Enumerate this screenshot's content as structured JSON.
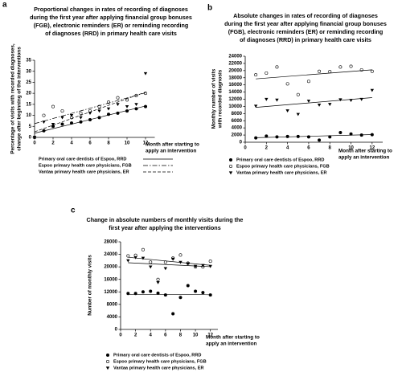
{
  "chart_data": [
    {
      "type": "scatter",
      "panel_label": "a",
      "title": [
        "Proportional changes in rates of recording of diagnoses",
        "during the first year after applying financial group bonuses",
        "(FGB), electronic reminders (ER)  or reminding recording",
        "of diagnoses (RRD) in primary health care visits"
      ],
      "x_label": [
        "Month after starting to",
        "apply an intervention"
      ],
      "y_label": [
        "Percentage of visits with recorded diagnoses,",
        "change after beginning of the interventions"
      ],
      "x": [
        0,
        1,
        2,
        3,
        4,
        5,
        6,
        7,
        8,
        9,
        10,
        11,
        12
      ],
      "xlim": [
        0,
        13
      ],
      "xticks": [
        0,
        2,
        4,
        6,
        8,
        10,
        12
      ],
      "ylim": [
        0,
        35
      ],
      "yticks": [
        0,
        5,
        10,
        15,
        20,
        25,
        30,
        35
      ],
      "trendline": true,
      "legend_style": "line",
      "series": [
        {
          "name": "Primary oral care dentists of Espoo, RRD",
          "color": "#000000",
          "marker": "circle-filled",
          "line_style": "solid",
          "values": [
            0,
            3,
            5,
            6,
            6.5,
            7,
            8,
            9,
            10.5,
            11,
            12,
            13,
            14
          ]
        },
        {
          "name": "Espoo primary health care physicians, FGB",
          "color": "#000000",
          "marker": "circle-open",
          "line_style": "dashdot",
          "values": [
            0,
            10,
            14,
            12,
            9,
            11,
            12,
            14,
            16,
            18,
            17,
            19,
            20
          ]
        },
        {
          "name": "Vantaa primary health care physicians, ER",
          "color": "#000000",
          "marker": "triangle",
          "line_style": "dashed",
          "values": [
            0,
            7,
            6,
            9,
            10,
            9,
            11,
            12,
            13,
            15,
            14,
            15,
            29
          ]
        }
      ]
    },
    {
      "type": "scatter",
      "panel_label": "b",
      "title": [
        "Absolute changes in rates of recording of diagnoses",
        "during the first year after applying financial group bonuses",
        "(FGB), electronic reminders (ER)  or reminding recording",
        "of diagnoses (RRD) in primary health care visits"
      ],
      "x_label": [
        "Month after starting to",
        "apply an intervention"
      ],
      "y_label": [
        "Monthly number of visits",
        "with recorded diagnosis"
      ],
      "x": [
        1,
        2,
        3,
        4,
        5,
        6,
        7,
        8,
        9,
        10,
        11,
        12
      ],
      "xlim": [
        0,
        13
      ],
      "xticks": [
        0,
        2,
        4,
        6,
        8,
        10,
        12
      ],
      "ylim": [
        0,
        24000
      ],
      "yticks": [
        0,
        2000,
        4000,
        6000,
        8000,
        10000,
        12000,
        14000,
        16000,
        18000,
        20000,
        22000,
        24000
      ],
      "trendline": true,
      "legend_style": "marker",
      "series": [
        {
          "name": "Primary oral care dentists of Espoo, RRD",
          "color": "#000000",
          "marker": "circle-filled",
          "line_style": "solid",
          "values": [
            1200,
            1700,
            1500,
            1600,
            1600,
            1500,
            600,
            1500,
            2700,
            2300,
            2000,
            2100
          ]
        },
        {
          "name": "Espoo primary health care physicians, FGB",
          "color": "#000000",
          "marker": "circle-open",
          "line_style": "solid",
          "values": [
            18800,
            19300,
            21000,
            16300,
            13300,
            17000,
            19800,
            19700,
            21000,
            21200,
            20200,
            19800
          ]
        },
        {
          "name": "Vantaa primary health care physicians, ER",
          "color": "#000000",
          "marker": "triangle",
          "line_style": "solid",
          "values": [
            10100,
            12000,
            11800,
            8800,
            7800,
            11500,
            10400,
            10600,
            11900,
            11700,
            12000,
            14500
          ]
        }
      ]
    },
    {
      "type": "scatter",
      "panel_label": "c",
      "title": [
        "Change in absolute numbers of monthly visits during the",
        "first year after applying the interventions"
      ],
      "x_label": [
        "Month after starting to",
        "apply an intervention"
      ],
      "y_label": [
        "Number of monthly visits"
      ],
      "x": [
        1,
        2,
        3,
        4,
        5,
        6,
        7,
        8,
        9,
        10,
        11,
        12
      ],
      "xlim": [
        0,
        13
      ],
      "xticks": [
        0,
        2,
        4,
        6,
        8,
        10,
        12
      ],
      "ylim": [
        0,
        28000
      ],
      "yticks": [
        0,
        4000,
        8000,
        12000,
        16000,
        20000,
        24000,
        28000
      ],
      "trendline": true,
      "legend_style": "marker",
      "series": [
        {
          "name": "Primary oral care dentists of Espoo, RRD",
          "color": "#000000",
          "marker": "circle-filled",
          "line_style": "solid",
          "values": [
            11500,
            11500,
            12000,
            12200,
            11600,
            11000,
            5000,
            10200,
            14000,
            12200,
            11800,
            11000
          ]
        },
        {
          "name": "Espoo primary health care physicians, FGB",
          "color": "#000000",
          "marker": "circle-open",
          "line_style": "solid",
          "values": [
            23500,
            23700,
            25500,
            21500,
            16000,
            21500,
            22800,
            23800,
            21200,
            20000,
            20000,
            21800
          ]
        },
        {
          "name": "Vantaa primary health care physicians, ER",
          "color": "#000000",
          "marker": "triangle",
          "line_style": "solid",
          "values": [
            22000,
            23000,
            22800,
            20000,
            15000,
            19500,
            22500,
            21500,
            21000,
            20200,
            20500,
            20200
          ]
        }
      ]
    }
  ]
}
